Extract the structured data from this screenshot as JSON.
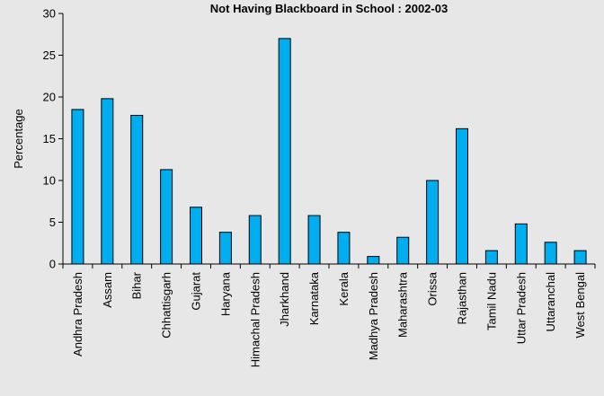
{
  "chart_data": {
    "type": "bar",
    "title": "Not Having Blackboard in School : 2002-03",
    "xlabel": "",
    "ylabel": "Percentage",
    "ylim": [
      0,
      30
    ],
    "yticks": [
      "0",
      "5",
      "10",
      "15",
      "20",
      "25",
      "30"
    ],
    "grid": false,
    "categories": [
      "Andhra Pradesh",
      "Assam",
      "Bihar",
      "Chhattisgarh",
      "Gujarat",
      "Haryana",
      "Himachal Pradesh",
      "Jharkhand",
      "Karnataka",
      "Kerala",
      "Madhya Pradesh",
      "Maharashtra",
      "Orissa",
      "Rajasthan",
      "Tamil Nadu",
      "Uttar Pradesh",
      "Uttaranchal",
      "West Bengal"
    ],
    "values": [
      18.5,
      19.8,
      17.8,
      11.3,
      6.8,
      3.8,
      5.8,
      27.0,
      5.8,
      3.8,
      0.9,
      3.2,
      10.0,
      16.2,
      1.6,
      4.8,
      2.6,
      1.6
    ],
    "colors": {
      "bar": "#00aeef",
      "background": "#e7e7e7"
    }
  }
}
